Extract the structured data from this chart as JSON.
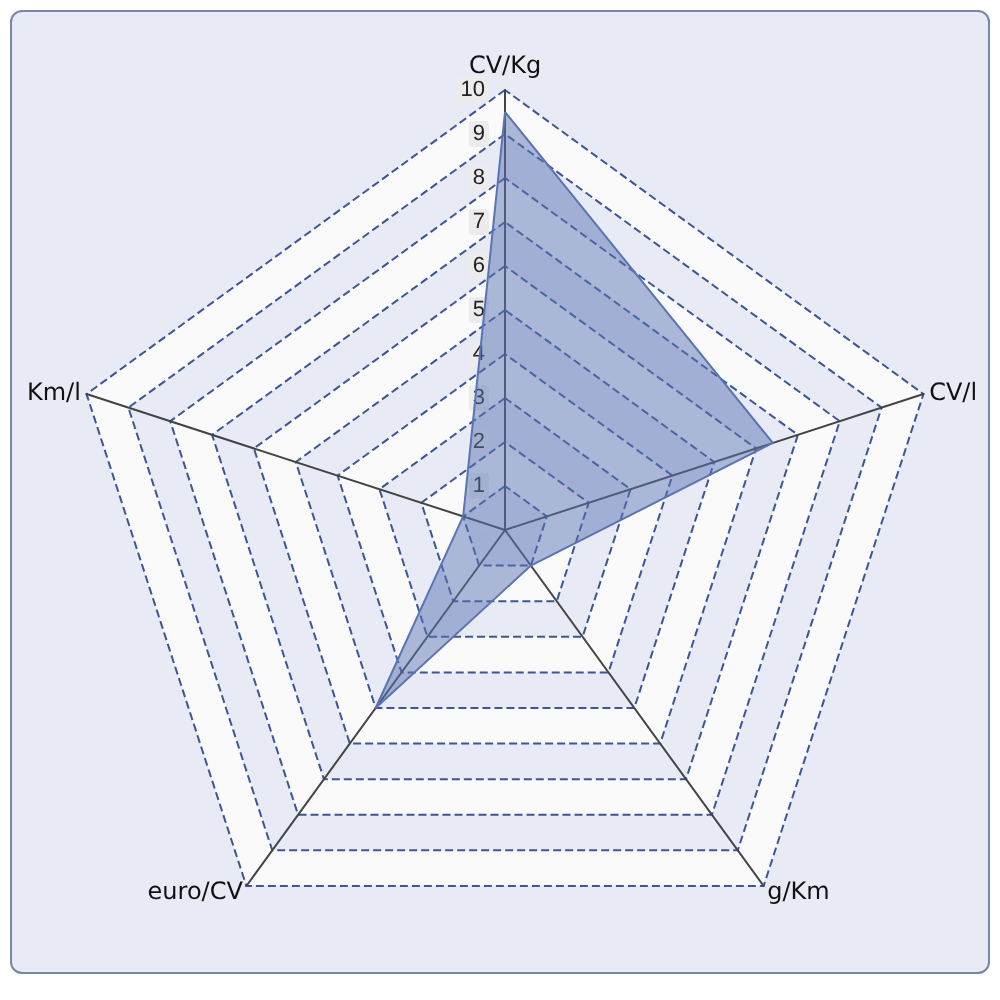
{
  "chart_data": {
    "type": "radar",
    "categories": [
      "CV/Kg",
      "CV/l",
      "g/Km",
      "euro/CV",
      "Km/l"
    ],
    "series": [
      {
        "color": "#5b74b3",
        "values": [
          9.5,
          6.4,
          1.0,
          5.0,
          1.0
        ]
      }
    ],
    "ylim": [
      0,
      10
    ],
    "yticks": [
      1,
      2,
      3,
      4,
      5,
      6,
      7,
      8,
      9,
      10
    ],
    "grid": true
  }
}
